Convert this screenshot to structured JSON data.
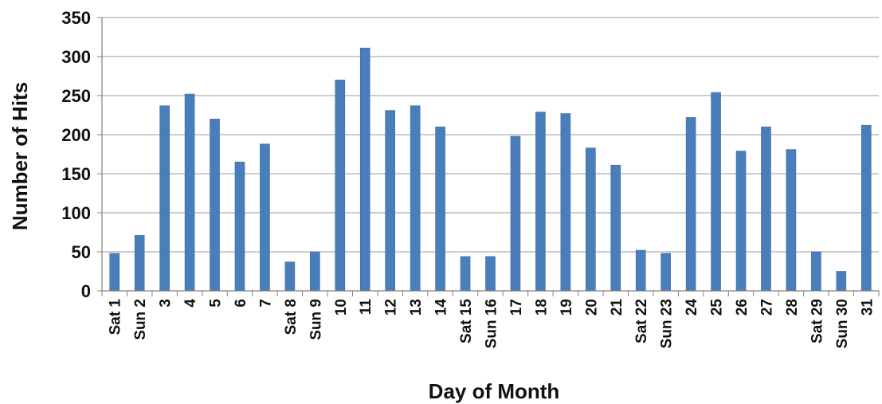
{
  "chart_data": {
    "type": "bar",
    "title": "",
    "xlabel": "Day of Month",
    "ylabel": "Number of Hits",
    "ylim": [
      0,
      350
    ],
    "yticks": [
      0,
      50,
      100,
      150,
      200,
      250,
      300,
      350
    ],
    "grid": true,
    "legend": "none",
    "bar_color": "#4a7ebb",
    "categories": [
      "Sat 1",
      "Sun 2",
      "3",
      "4",
      "5",
      "6",
      "7",
      "Sat 8",
      "Sun 9",
      "10",
      "11",
      "12",
      "13",
      "14",
      "Sat 15",
      "Sun 16",
      "17",
      "18",
      "19",
      "20",
      "21",
      "Sat 22",
      "Sun 23",
      "24",
      "25",
      "26",
      "27",
      "28",
      "Sat 29",
      "Sun 30",
      "31"
    ],
    "values": [
      48,
      71,
      237,
      252,
      220,
      165,
      188,
      37,
      50,
      270,
      311,
      231,
      237,
      210,
      44,
      44,
      198,
      229,
      227,
      183,
      161,
      52,
      48,
      222,
      254,
      179,
      210,
      181,
      50,
      25,
      212
    ]
  }
}
